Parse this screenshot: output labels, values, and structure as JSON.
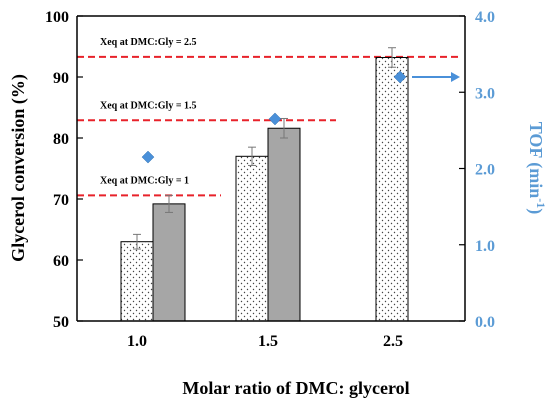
{
  "chart_data": {
    "type": "bar",
    "title": "",
    "xlabel": "Molar ratio of DMC: glycerol",
    "ylabel": "Glycerol conversion (%)",
    "y2label_main": "TOF (min",
    "y2label_sup": "-1",
    "y2label_end": ")",
    "categories": [
      "1.0",
      "1.5",
      "2.5"
    ],
    "ylim": [
      50,
      100
    ],
    "yticks": [
      "50",
      "60",
      "70",
      "80",
      "90",
      "100"
    ],
    "y2lim": [
      0.0,
      4.0
    ],
    "y2ticks": [
      "0.0",
      "1.0",
      "2.0",
      "3.0",
      "4.0"
    ],
    "series": [
      {
        "values": [
          63.0,
          77.0,
          93.2
        ],
        "errors": [
          1.2,
          1.5,
          1.6
        ],
        "style": "dotted"
      },
      {
        "values": [
          69.2,
          81.6,
          null
        ],
        "errors": [
          1.4,
          1.6,
          null
        ],
        "style": "gray"
      }
    ],
    "tof_series": {
      "values": [
        2.15,
        2.65,
        3.2
      ],
      "color": "#4a90d9"
    },
    "equilibrium_lines": [
      {
        "label": "Xeq at DMC:Gly = 1",
        "value": 70.6
      },
      {
        "label": "Xeq at DMC:Gly = 1.5",
        "value": 82.9
      },
      {
        "label": "Xeq at DMC:Gly = 2.5",
        "value": 93.3
      }
    ],
    "colors": {
      "eq_line": "#e8222a",
      "tof": "#4a90d9",
      "y2axis": "#5b9bd5",
      "gray_bar": "#a6a6a6"
    },
    "grid": false,
    "legend": "none"
  }
}
